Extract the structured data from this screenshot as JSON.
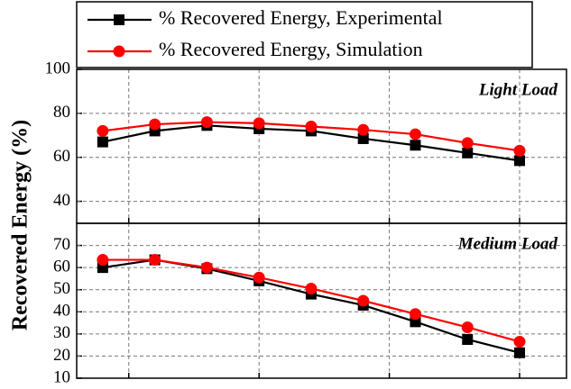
{
  "chart_data": {
    "type": "line",
    "y_label": "Recovered Energy (%)",
    "x": [
      1,
      2,
      3,
      4,
      5,
      6,
      7,
      8,
      9
    ],
    "xlim": [
      0.5,
      9.9
    ],
    "xticks": [
      1.5,
      4,
      6.5,
      9
    ],
    "grid": true,
    "series": [
      {
        "name": "% Recovered Energy, Experimental",
        "color": "#000000",
        "marker": "square"
      },
      {
        "name": "% Recovered Energy, Simulation",
        "color": "#ff0000",
        "marker": "circle"
      }
    ],
    "panels": [
      {
        "annotation": "Light Load",
        "ylim": [
          30,
          100
        ],
        "yticks": [
          40,
          60,
          80,
          100
        ],
        "series": [
          {
            "values": [
              67,
              72,
              74.5,
              73,
              72,
              68.5,
              65.5,
              62,
              58.5
            ]
          },
          {
            "values": [
              72,
              75,
              76,
              75.5,
              74,
              72.5,
              70.5,
              66.5,
              63
            ]
          }
        ]
      },
      {
        "annotation": "Medium Load",
        "ylim": [
          10,
          80
        ],
        "yticks": [
          10,
          20,
          30,
          40,
          50,
          60,
          70
        ],
        "series": [
          {
            "values": [
              60,
              63.5,
              59.5,
              54,
              48,
              43,
              35.5,
              27.5,
              21.5
            ]
          },
          {
            "values": [
              63.5,
              63.5,
              60,
              55.5,
              50.5,
              45,
              39,
              33,
              26.5
            ]
          }
        ]
      }
    ]
  }
}
